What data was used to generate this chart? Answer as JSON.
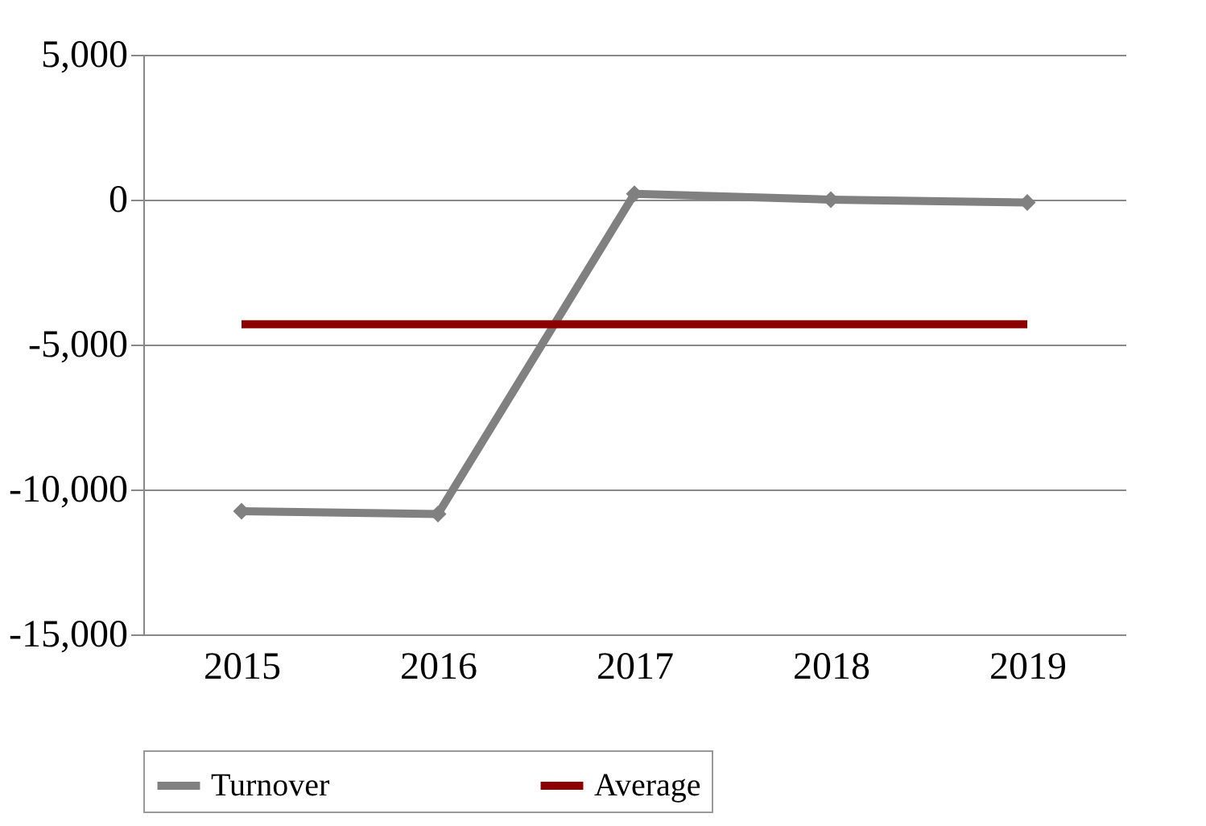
{
  "chart_data": {
    "type": "line",
    "categories": [
      "2015",
      "2016",
      "2017",
      "2018",
      "2019"
    ],
    "series": [
      {
        "name": "Turnover",
        "color": "#808080",
        "marker": "diamond",
        "values": [
          -10750,
          -10850,
          200,
          0,
          -100
        ]
      },
      {
        "name": "Average",
        "color": "#8b0000",
        "marker": "none",
        "values": [
          -4300,
          -4300,
          -4300,
          -4300,
          -4300
        ]
      }
    ],
    "ylim": [
      -15000,
      5000
    ],
    "yticks": [
      {
        "value": -15000,
        "label": "-15,000"
      },
      {
        "value": -10000,
        "label": "-10,000"
      },
      {
        "value": -5000,
        "label": "-5,000"
      },
      0,
      {
        "value": 5000,
        "label": "5,000"
      }
    ],
    "grid": "y",
    "legend": "bottom",
    "line_style": "solid"
  }
}
